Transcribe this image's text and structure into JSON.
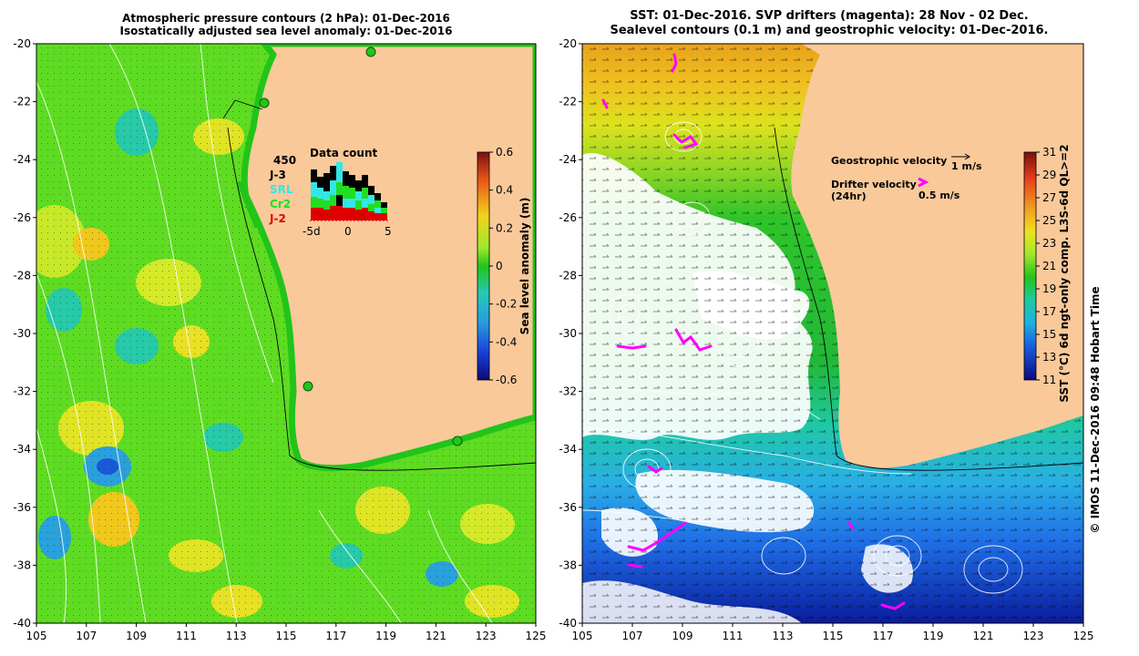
{
  "left_panel": {
    "title_line1": "Atmospheric pressure contours (2 hPa): 01-Dec-2016",
    "title_line2": "Isostatically adjusted sea level anomaly: 01-Dec-2016",
    "y_ticks": [
      "-20",
      "-22",
      "-24",
      "-26",
      "-28",
      "-30",
      "-32",
      "-34",
      "-36",
      "-38",
      "-40"
    ],
    "x_ticks": [
      "105",
      "107",
      "109",
      "111",
      "113",
      "115",
      "117",
      "119",
      "121",
      "123",
      "125"
    ],
    "colorbar": {
      "label": "Sea level anomaly (m)",
      "ticks": [
        "0.6",
        "0.4",
        "0.2",
        "0",
        "-0.2",
        "-0.4",
        "-0.6"
      ]
    },
    "data_count": {
      "title": "Data count",
      "max_label": "450",
      "legend": [
        {
          "name": "J-3",
          "color": "#000000"
        },
        {
          "name": "SRL",
          "color": "#33e6e6"
        },
        {
          "name": "Cr2",
          "color": "#22dd22"
        },
        {
          "name": "J-2",
          "color": "#dd0000"
        }
      ],
      "x_ticks": [
        "-5d",
        "0",
        "5"
      ]
    }
  },
  "right_panel": {
    "title_line1": "SST: 01-Dec-2016. SVP drifters (magenta): 28 Nov - 02 Dec.",
    "title_line2": "Sealevel contours (0.1 m) and geostrophic velocity: 01-Dec-2016.",
    "y_ticks": [
      "-20",
      "-22",
      "-24",
      "-26",
      "-28",
      "-30",
      "-32",
      "-34",
      "-36",
      "-38",
      "-40"
    ],
    "x_ticks": [
      "105",
      "107",
      "109",
      "111",
      "113",
      "115",
      "117",
      "119",
      "121",
      "123",
      "125"
    ],
    "legend": {
      "geostrophic_label": "Geostrophic velocity",
      "geostrophic_value": "1 m/s",
      "drifter_label": "Drifter velocity",
      "drifter_sub": "(24hr)",
      "drifter_value": "0.5 m/s"
    },
    "colorbar": {
      "label": "SST (°C) 6d ngt-only comp. L3S-6d QL>=2",
      "ticks": [
        "31",
        "29",
        "27",
        "25",
        "23",
        "21",
        "19",
        "17",
        "15",
        "13",
        "11"
      ]
    },
    "credit": "© IMOS 11-Dec-2016 09:48 Hobart Time"
  },
  "colors": {
    "land": "#f9c99a",
    "coast_green": "#22c41a",
    "magenta": "#ff00ff"
  }
}
